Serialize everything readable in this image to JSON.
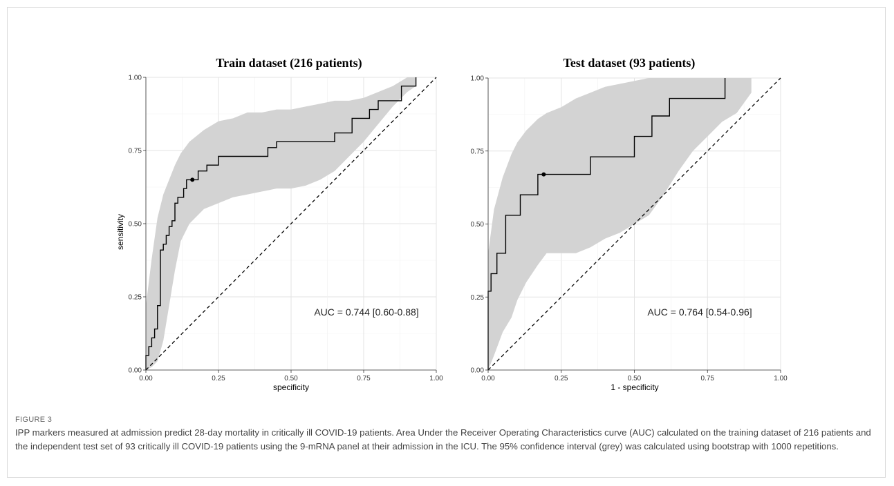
{
  "figure": {
    "label": "FIGURE 3",
    "caption": "IPP markers measured at admission predict 28-day mortality in critically ill COVID-19 patients. Area Under the Receiver Operating Characteristics curve (AUC) calculated on the training dataset of 216 patients and the independent test set of 93 critically ill COVID-19 patients using the 9-mRNA panel at their admission in the ICU. The 95% confidence interval (grey) was calculated using bootstrap with 1000 repetitions."
  },
  "chart_data": [
    {
      "type": "line",
      "title": "Train dataset (216 patients)",
      "xlabel": "specificity",
      "ylabel": "sensitivity",
      "xlim": [
        0,
        1
      ],
      "ylim": [
        0,
        1
      ],
      "xticks": [
        "0.00",
        "0.25",
        "0.50",
        "0.75",
        "1.00"
      ],
      "yticks": [
        "0.00",
        "0.25",
        "0.50",
        "0.75",
        "1.00"
      ],
      "grid": true,
      "annotation": "AUC = 0.744 [0.60-0.88]",
      "colors": {
        "line": "#000000",
        "band": "#d3d3d3",
        "diagonal": "#000000"
      },
      "series": [
        {
          "x": [
            0.0,
            0.0,
            0.01,
            0.01,
            0.02,
            0.02,
            0.03,
            0.03,
            0.04,
            0.04,
            0.05,
            0.05,
            0.06,
            0.06,
            0.07,
            0.07,
            0.08,
            0.08,
            0.09,
            0.09,
            0.1,
            0.1,
            0.11,
            0.11,
            0.13,
            0.13,
            0.14,
            0.14,
            0.15,
            0.15,
            0.16,
            0.16,
            0.18,
            0.18,
            0.21,
            0.21,
            0.25,
            0.25,
            0.3,
            0.3,
            0.42,
            0.42,
            0.45,
            0.45,
            0.65,
            0.65,
            0.71,
            0.71,
            0.77,
            0.77,
            0.8,
            0.8,
            0.88,
            0.88,
            0.93,
            0.93
          ],
          "y": [
            0.0,
            0.05,
            0.05,
            0.08,
            0.08,
            0.11,
            0.11,
            0.14,
            0.14,
            0.22,
            0.22,
            0.41,
            0.41,
            0.43,
            0.43,
            0.46,
            0.46,
            0.49,
            0.49,
            0.51,
            0.51,
            0.57,
            0.57,
            0.59,
            0.59,
            0.62,
            0.62,
            0.65,
            0.65,
            0.65,
            0.65,
            0.65,
            0.65,
            0.68,
            0.68,
            0.7,
            0.7,
            0.73,
            0.73,
            0.73,
            0.73,
            0.76,
            0.76,
            0.78,
            0.78,
            0.81,
            0.81,
            0.86,
            0.86,
            0.89,
            0.89,
            0.92,
            0.92,
            0.97,
            0.97,
            1.0
          ]
        }
      ],
      "ci_band": {
        "x": [
          0.0,
          0.02,
          0.04,
          0.06,
          0.08,
          0.1,
          0.12,
          0.15,
          0.2,
          0.25,
          0.3,
          0.35,
          0.4,
          0.45,
          0.5,
          0.55,
          0.6,
          0.65,
          0.7,
          0.75,
          0.8,
          0.85,
          0.9,
          0.93
        ],
        "upper": [
          0.22,
          0.38,
          0.52,
          0.6,
          0.65,
          0.7,
          0.74,
          0.78,
          0.82,
          0.85,
          0.86,
          0.88,
          0.88,
          0.89,
          0.89,
          0.9,
          0.91,
          0.92,
          0.92,
          0.93,
          0.95,
          0.97,
          1.0,
          1.0
        ],
        "lower": [
          0.0,
          0.01,
          0.03,
          0.1,
          0.22,
          0.34,
          0.44,
          0.5,
          0.55,
          0.57,
          0.59,
          0.6,
          0.61,
          0.62,
          0.62,
          0.63,
          0.65,
          0.68,
          0.73,
          0.78,
          0.84,
          0.9,
          0.95,
          0.97
        ]
      },
      "optimal_point": {
        "x": 0.16,
        "y": 0.65
      }
    },
    {
      "type": "line",
      "title": "Test dataset (93 patients)",
      "xlabel": "1 - specificity",
      "ylabel": "",
      "xlim": [
        0,
        1
      ],
      "ylim": [
        0,
        1
      ],
      "xticks": [
        "0.00",
        "0.25",
        "0.50",
        "0.75",
        "1.00"
      ],
      "yticks": [
        "0.00",
        "0.25",
        "0.50",
        "0.75",
        "1.00"
      ],
      "grid": true,
      "annotation": "AUC = 0.764 [0.54-0.96]",
      "colors": {
        "line": "#000000",
        "band": "#d3d3d3",
        "diagonal": "#000000"
      },
      "series": [
        {
          "x": [
            0.0,
            0.0,
            0.01,
            0.01,
            0.03,
            0.03,
            0.06,
            0.06,
            0.11,
            0.11,
            0.13,
            0.13,
            0.17,
            0.17,
            0.19,
            0.19,
            0.35,
            0.35,
            0.5,
            0.5,
            0.56,
            0.56,
            0.62,
            0.62,
            0.81,
            0.81
          ],
          "y": [
            0.0,
            0.27,
            0.27,
            0.33,
            0.33,
            0.4,
            0.4,
            0.53,
            0.53,
            0.6,
            0.6,
            0.6,
            0.6,
            0.67,
            0.67,
            0.67,
            0.67,
            0.73,
            0.73,
            0.8,
            0.8,
            0.87,
            0.87,
            0.93,
            0.93,
            1.0
          ]
        }
      ],
      "ci_band": {
        "x": [
          0.0,
          0.02,
          0.05,
          0.08,
          0.1,
          0.13,
          0.17,
          0.2,
          0.25,
          0.3,
          0.35,
          0.4,
          0.45,
          0.5,
          0.55,
          0.6,
          0.65,
          0.7,
          0.75,
          0.8,
          0.85,
          0.9
        ],
        "upper": [
          0.4,
          0.55,
          0.66,
          0.74,
          0.78,
          0.82,
          0.86,
          0.88,
          0.9,
          0.93,
          0.95,
          0.97,
          0.98,
          0.99,
          1.0,
          1.0,
          1.0,
          1.0,
          1.0,
          1.0,
          1.0,
          1.0
        ],
        "lower": [
          0.0,
          0.05,
          0.13,
          0.18,
          0.24,
          0.3,
          0.36,
          0.4,
          0.4,
          0.4,
          0.42,
          0.45,
          0.47,
          0.5,
          0.53,
          0.6,
          0.68,
          0.75,
          0.8,
          0.85,
          0.88,
          0.95
        ]
      },
      "optimal_point": {
        "x": 0.19,
        "y": 0.67
      }
    }
  ]
}
